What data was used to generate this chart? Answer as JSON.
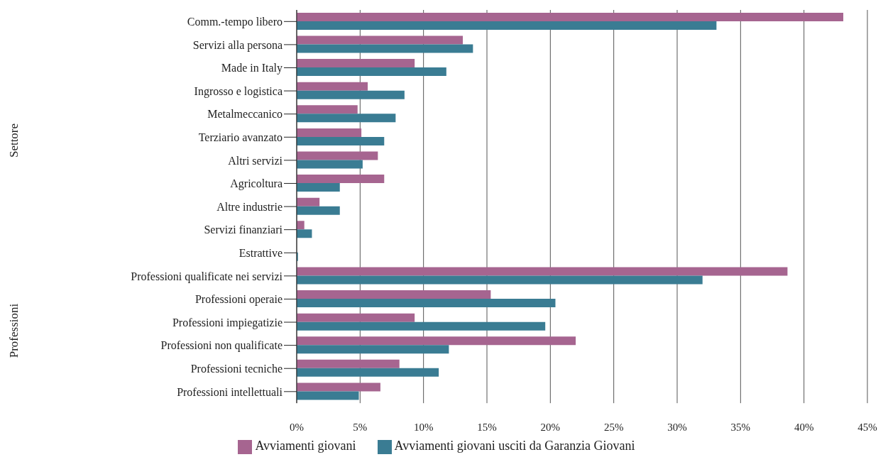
{
  "chart_data": {
    "type": "bar",
    "orientation": "horizontal",
    "categories": [
      "Comm.-tempo libero",
      "Servizi alla persona",
      "Made in Italy",
      "Ingrosso e logistica",
      "Metalmeccanico",
      "Terziario avanzato",
      "Altri servizi",
      "Agricoltura",
      "Altre industrie",
      "Servizi finanziari",
      "Estrattive",
      "Professioni qualificate nei servizi",
      "Professioni operaie",
      "Professioni impiegatizie",
      "Professioni non qualificate",
      "Professioni tecniche",
      "Professioni intellettuali"
    ],
    "series": [
      {
        "name": "Avviamenti giovani",
        "color": "#a66590",
        "values": [
          43.1,
          13.1,
          9.3,
          5.6,
          4.8,
          5.1,
          6.4,
          6.9,
          1.8,
          0.6,
          0,
          38.7,
          15.3,
          9.3,
          22.0,
          8.1,
          6.6
        ]
      },
      {
        "name": "Avviamenti giovani usciti da Garanzia Giovani",
        "color": "#3a7c93",
        "values": [
          33.1,
          13.9,
          11.8,
          8.5,
          7.8,
          6.9,
          5.2,
          3.4,
          3.4,
          1.2,
          0.1,
          32.0,
          20.4,
          19.6,
          12.0,
          11.2,
          4.9
        ]
      }
    ],
    "xlim": [
      0,
      45
    ],
    "xticks": [
      {
        "value": 0,
        "label": "0%"
      },
      {
        "value": 5,
        "label": "5%"
      },
      {
        "value": 10,
        "label": "10%"
      },
      {
        "value": 15,
        "label": "15%"
      },
      {
        "value": 20,
        "label": "20%"
      },
      {
        "value": 25,
        "label": "25%"
      },
      {
        "value": 30,
        "label": "30%"
      },
      {
        "value": 35,
        "label": "35%"
      },
      {
        "value": 40,
        "label": "40%"
      },
      {
        "value": 45,
        "label": "45%"
      }
    ],
    "annotations": [
      "Settore",
      "Professioni"
    ],
    "grid": "x",
    "legend": "bottom"
  }
}
